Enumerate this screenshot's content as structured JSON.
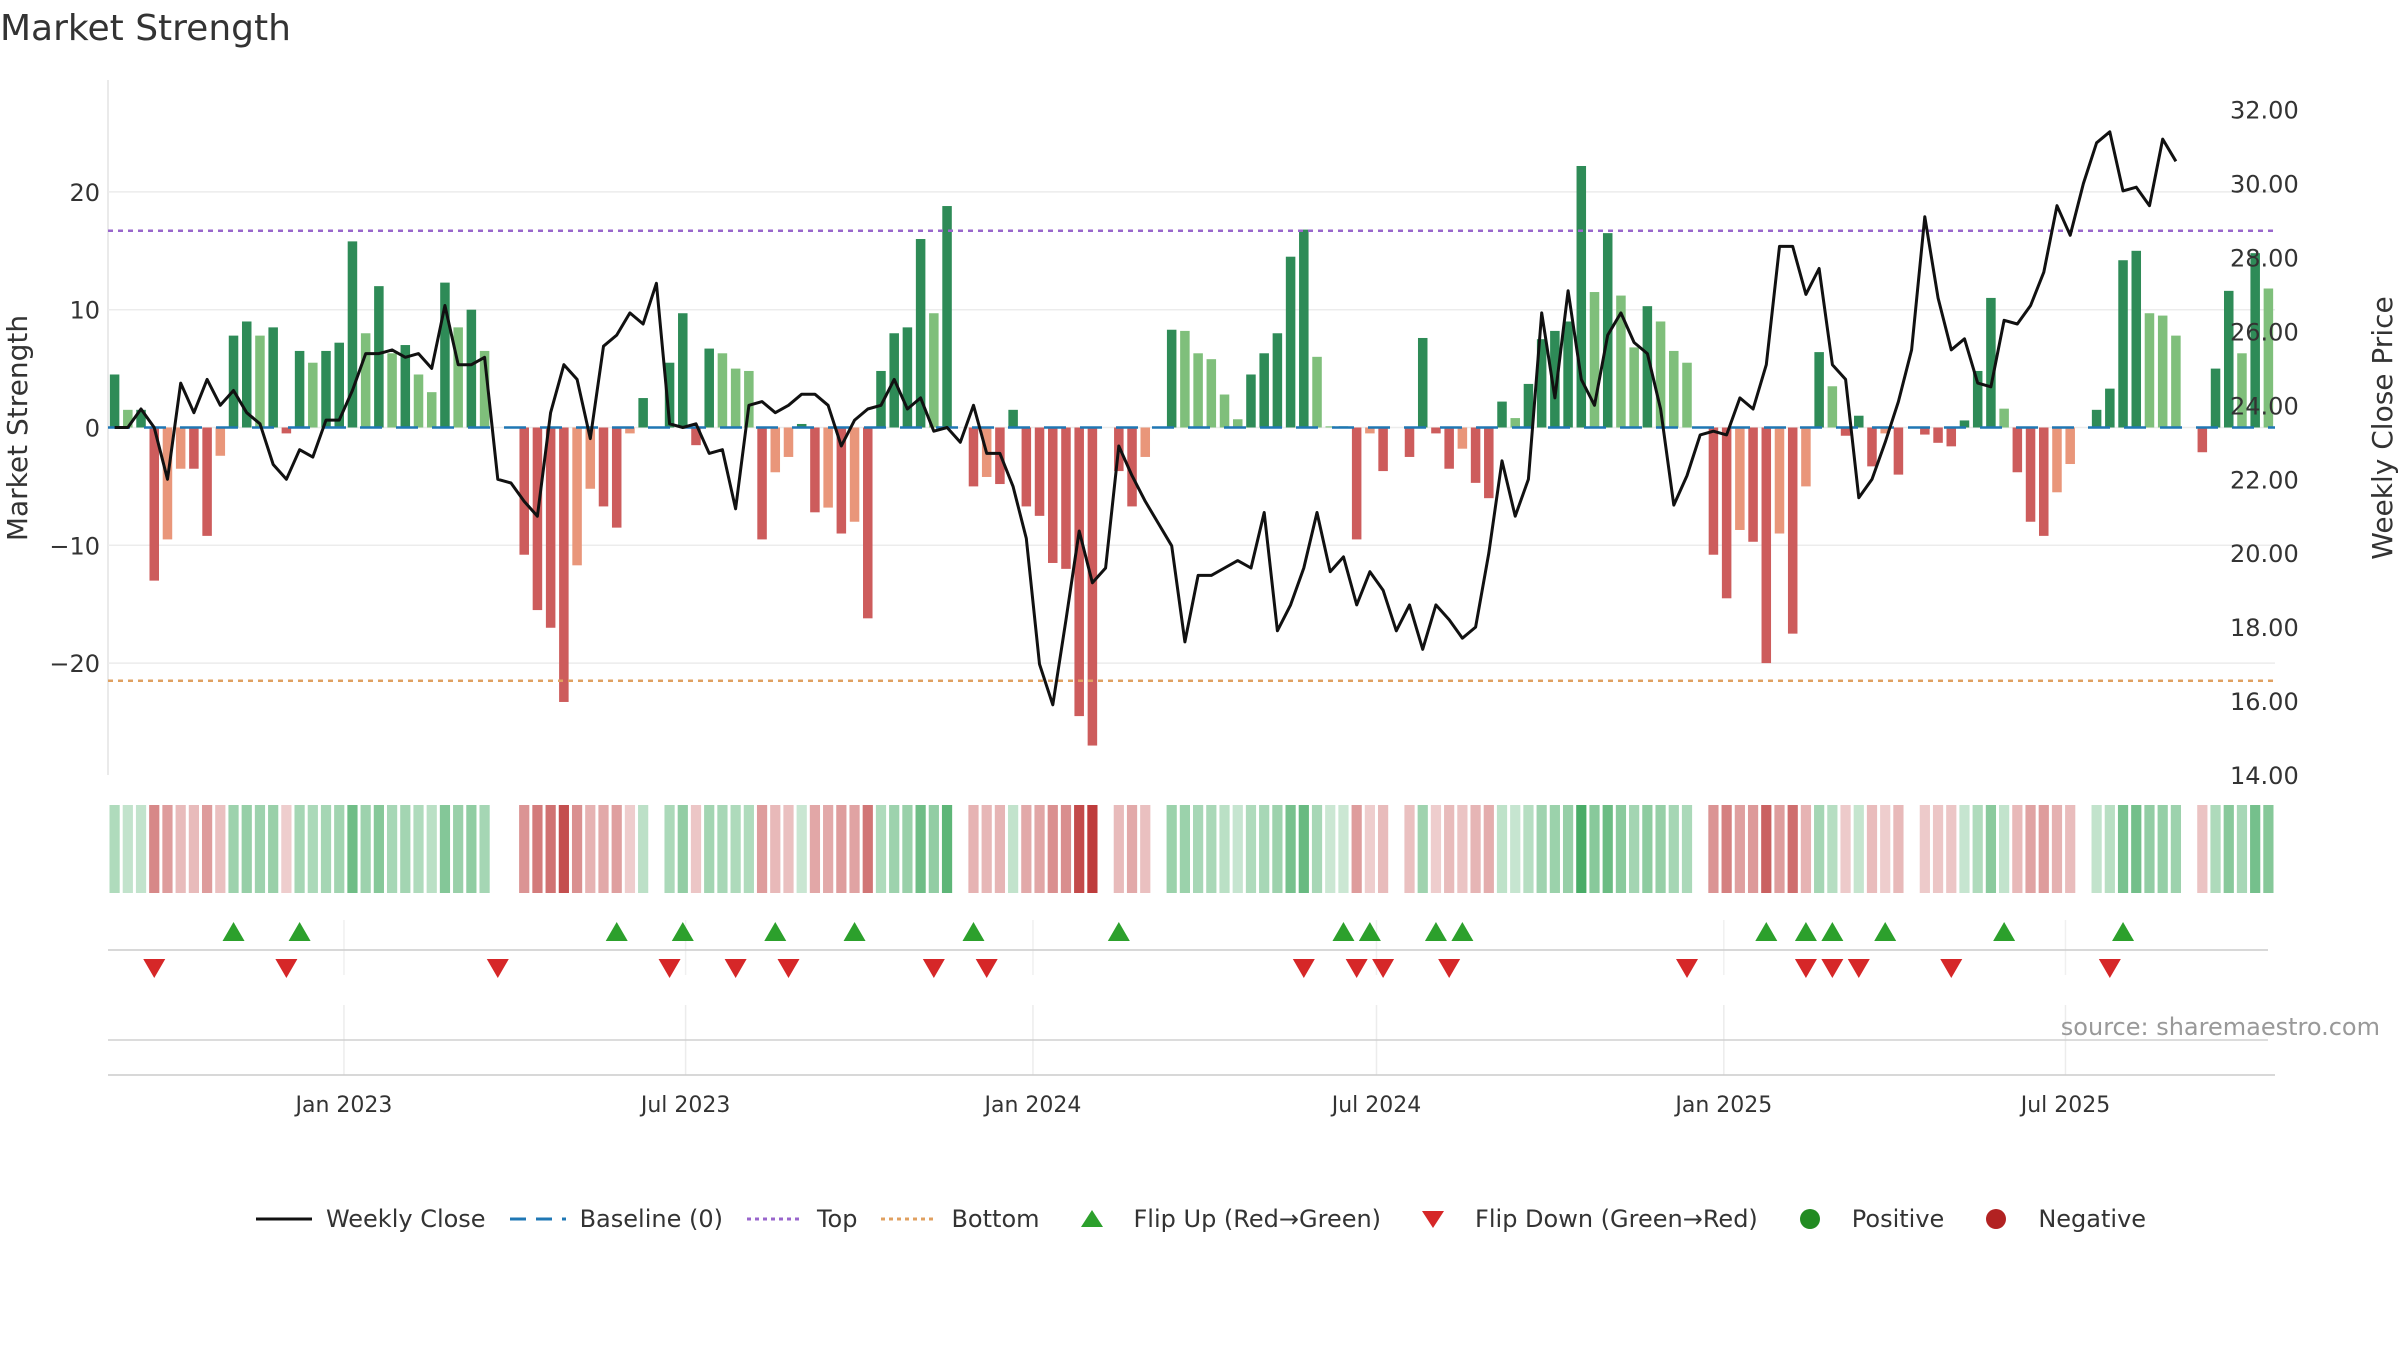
{
  "chart_data": {
    "type": "bar",
    "title": "Market Strength",
    "source": "source: sharemaestro.com",
    "ylabel_left": "Market Strength",
    "ylabel_right": "Weekly Close Price",
    "ylim_left": [
      -29.5,
      29.5
    ],
    "ylim_right": [
      14,
      32.8
    ],
    "yticks_left": [
      20,
      10,
      0,
      -10,
      -20
    ],
    "yticks_left_labels": [
      "20",
      "10",
      "0",
      "−10",
      "−20"
    ],
    "yticks_right_labels": [
      "32.00",
      "30.00",
      "28.00",
      "26.00",
      "24.00",
      "22.00",
      "20.00",
      "18.00",
      "16.00",
      "14.00"
    ],
    "x_start_date": "2022-08-29",
    "x_tick_labels": [
      "Jan 2023",
      "Jul 2023",
      "Jan 2024",
      "Jul 2024",
      "Jan 2025",
      "Jul 2025"
    ],
    "x_tick_dates": [
      "2023-01-01",
      "2023-07-01",
      "2024-01-01",
      "2024-07-01",
      "2025-01-01",
      "2025-07-01"
    ],
    "top_line": 16.7,
    "bottom_line": -21.5,
    "strength": [
      4.5,
      1.5,
      1.5,
      -13,
      -9.5,
      -3.5,
      -3.5,
      -9.2,
      -2.4,
      7.8,
      9,
      7.8,
      8.5,
      -0.5,
      6.5,
      5.5,
      6.5,
      7.2,
      15.8,
      8,
      12,
      6.3,
      7,
      4.5,
      3,
      12.3,
      8.5,
      10,
      6.5,
      0,
      0,
      -10.8,
      -15.5,
      -17,
      -23.3,
      -11.7,
      -5.2,
      -6.7,
      -8.5,
      -0.5,
      2.5,
      0,
      5.5,
      9.7,
      -1.5,
      6.7,
      6.3,
      5,
      4.8,
      -9.5,
      -3.8,
      -2.5,
      0.3,
      -7.2,
      -6.8,
      -9,
      -8,
      -16.2,
      4.8,
      8,
      8.5,
      16,
      9.7,
      18.8,
      0,
      -5,
      -4.2,
      -4.8,
      1.5,
      -6.7,
      -7.5,
      -11.5,
      -12,
      -24.5,
      -27,
      0,
      -3.7,
      -6.7,
      -2.5,
      0,
      8.3,
      8.2,
      6.3,
      5.8,
      2.8,
      0.7,
      4.5,
      6.3,
      8,
      14.5,
      16.8,
      6,
      0.1,
      0.1,
      -9.5,
      -0.5,
      -3.7,
      0,
      -2.5,
      7.6,
      -0.5,
      -3.5,
      -1.8,
      -4.7,
      -6,
      2.2,
      0.8,
      3.7,
      7.5,
      8.2,
      9,
      22.2,
      11.5,
      16.5,
      11.2,
      6.8,
      10.3,
      9,
      6.5,
      5.5,
      0,
      -10.8,
      -14.5,
      -8.7,
      -9.7,
      -20,
      -9,
      -17.5,
      -5,
      6.4,
      3.5,
      -0.7,
      1,
      -3.3,
      -0.5,
      -4,
      0,
      -0.6,
      -1.3,
      -1.6,
      0.6,
      4.8,
      11,
      1.6,
      -3.8,
      -8,
      -9.2,
      -5.5,
      -3.1,
      0,
      1.5,
      3.3,
      14.2,
      15,
      9.7,
      9.5,
      7.8,
      0,
      -2.1,
      5,
      11.6,
      6.3,
      14.8,
      11.8
    ],
    "weekly_close": [
      23.4,
      23.4,
      23.9,
      23.4,
      22,
      24.6,
      23.8,
      24.7,
      24,
      24.4,
      23.8,
      23.5,
      22.4,
      22,
      22.8,
      22.6,
      23.6,
      23.6,
      24.4,
      25.4,
      25.4,
      25.5,
      25.3,
      25.4,
      25,
      26.7,
      25.1,
      25.1,
      25.3,
      22,
      21.9,
      21.4,
      21,
      23.8,
      25.1,
      24.7,
      23.1,
      25.6,
      25.9,
      26.5,
      26.2,
      27.3,
      23.5,
      23.4,
      23.5,
      22.7,
      22.8,
      21.2,
      24,
      24.1,
      23.8,
      24,
      24.3,
      24.3,
      24,
      22.9,
      23.6,
      23.9,
      24,
      24.7,
      23.9,
      24.2,
      23.3,
      23.4,
      23,
      24,
      22.7,
      22.7,
      21.8,
      20.4,
      17,
      15.9,
      18.2,
      20.6,
      19.2,
      19.6,
      22.9,
      22.1,
      21.4,
      20.8,
      20.2,
      17.6,
      19.4,
      19.4,
      19.6,
      19.8,
      19.6,
      21.1,
      17.9,
      18.6,
      19.6,
      21.1,
      19.5,
      19.9,
      18.6,
      19.5,
      19,
      17.9,
      18.6,
      17.4,
      18.6,
      18.2,
      17.7,
      18,
      20,
      22.5,
      21,
      22,
      26.5,
      24.2,
      27.1,
      24.7,
      24,
      25.9,
      26.5,
      25.7,
      25.4,
      23.9,
      21.3,
      22.1,
      23.2,
      23.3,
      23.2,
      24.2,
      23.9,
      25.1,
      28.3,
      28.3,
      27,
      27.7,
      25.1,
      24.7,
      21.5,
      22,
      23,
      24.1,
      25.5,
      29.1,
      26.9,
      25.5,
      25.8,
      24.6,
      24.5,
      26.3,
      26.2,
      26.7,
      27.6,
      29.4,
      28.6,
      30,
      31.1,
      31.4,
      29.8,
      29.9,
      29.4,
      31.2,
      30.6
    ],
    "flip_up_weeks": [
      9,
      14,
      38,
      43,
      50,
      56,
      65,
      76,
      93,
      95,
      100,
      102,
      125,
      128,
      130,
      134,
      143,
      152
    ],
    "flip_down_weeks": [
      3,
      13,
      29,
      42,
      47,
      51,
      62,
      66,
      90,
      94,
      96,
      101,
      119,
      128,
      130,
      132,
      139,
      151
    ],
    "colors": {
      "strong_green": "#2e8b57",
      "light_green": "#7fbf7b",
      "strong_red": "#cd5c5c",
      "light_red": "#e9967a",
      "top_line": "#9966cc",
      "bottom_line": "#e0a060",
      "baseline": "#1f77b4",
      "flip_up": "#2ca02c",
      "flip_down": "#d62728"
    },
    "legend": [
      {
        "label": "Weekly Close",
        "symbol": "solid-line",
        "color": "#111111"
      },
      {
        "label": "Baseline (0)",
        "symbol": "dashed-line",
        "color": "#1f77b4"
      },
      {
        "label": "Top",
        "symbol": "dotted-line",
        "color": "#9966cc"
      },
      {
        "label": "Bottom",
        "symbol": "dotted-line",
        "color": "#e0a060"
      },
      {
        "label": "Flip Up (Red→Green)",
        "symbol": "triangle-up",
        "color": "#2ca02c"
      },
      {
        "label": "Flip Down (Green→Red)",
        "symbol": "triangle-down",
        "color": "#d62728"
      },
      {
        "label": "Positive",
        "symbol": "circle",
        "color": "#228b22"
      },
      {
        "label": "Negative",
        "symbol": "circle",
        "color": "#b22222"
      }
    ],
    "legend_position": "bottom-center",
    "grid": true
  }
}
